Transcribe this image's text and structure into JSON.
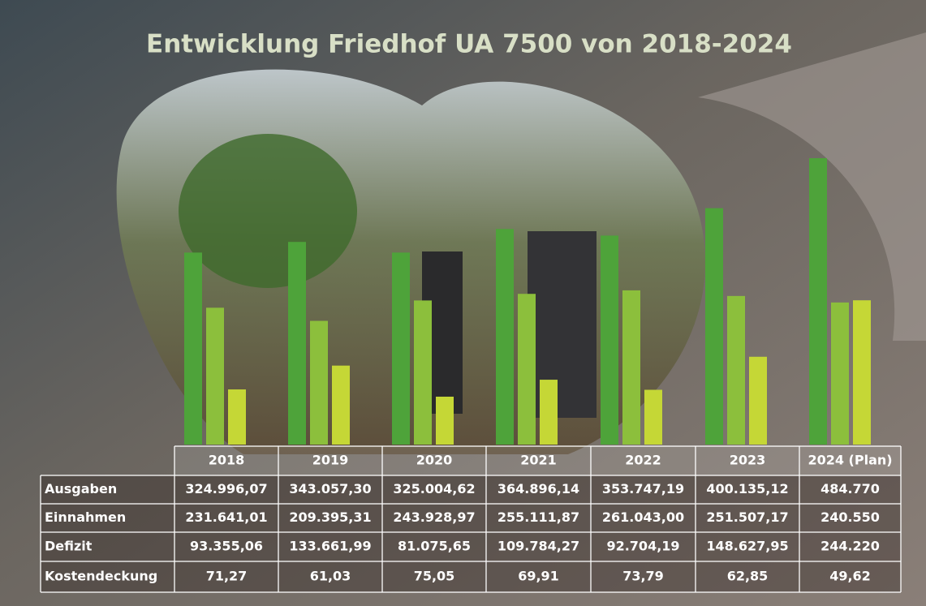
{
  "chart_data": {
    "type": "bar",
    "title": "Entwicklung Friedhof UA 7500 von 2018-2024",
    "categories": [
      "2018",
      "2019",
      "2020",
      "2021",
      "2022",
      "2023",
      "2024 (Plan)"
    ],
    "series": [
      {
        "name": "Ausgaben",
        "color": "#4ea33a",
        "values": [
          324996.07,
          343057.3,
          325004.62,
          364896.14,
          353747.19,
          400135.12,
          484770
        ],
        "value_labels": [
          "324.996,07",
          "343.057,30",
          "325.004,62",
          "364.896,14",
          "353.747,19",
          "400.135,12",
          "484.770"
        ]
      },
      {
        "name": "Einnahmen",
        "color": "#8cbf3c",
        "values": [
          231641.01,
          209395.31,
          243928.97,
          255111.87,
          261043.0,
          251507.17,
          240550
        ],
        "value_labels": [
          "231.641,01",
          "209.395,31",
          "243.928,97",
          "255.111,87",
          "261.043,00",
          "251.507,17",
          "240.550"
        ]
      },
      {
        "name": "Defizit",
        "color": "#c5d736",
        "values": [
          93355.06,
          133661.99,
          81075.65,
          109784.27,
          92704.19,
          148627.95,
          244220
        ],
        "value_labels": [
          "93.355,06",
          "133.661,99",
          "81.075,65",
          "109.784,27",
          "92.704,19",
          "148.627,95",
          "244.220"
        ]
      },
      {
        "name": "Kostendeckung",
        "values": [
          71.27,
          61.03,
          75.05,
          69.91,
          73.79,
          62.85,
          49.62
        ],
        "value_labels": [
          "71,27",
          "61,03",
          "75,05",
          "69,91",
          "73,79",
          "62,85",
          "49,62"
        ]
      }
    ]
  }
}
